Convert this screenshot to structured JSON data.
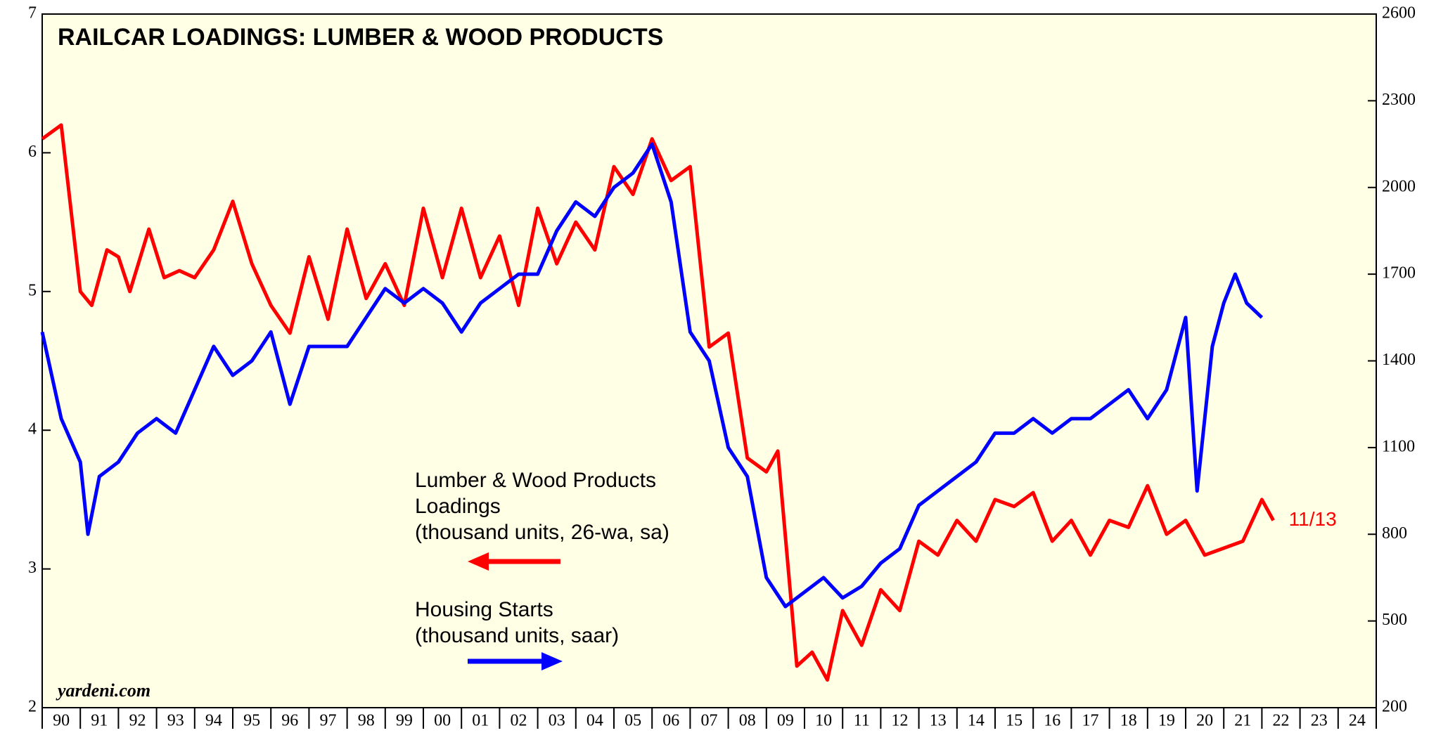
{
  "chart_data": {
    "type": "line",
    "title": "RAILCAR LOADINGS: LUMBER & WOOD PRODUCTS",
    "source": "yardeni.com",
    "end_label": "11/13",
    "xlim": [
      1990,
      2025
    ],
    "xticks": [
      {
        "value": 1990,
        "label": "90"
      },
      {
        "value": 1991,
        "label": "91"
      },
      {
        "value": 1992,
        "label": "92"
      },
      {
        "value": 1993,
        "label": "93"
      },
      {
        "value": 1994,
        "label": "94"
      },
      {
        "value": 1995,
        "label": "95"
      },
      {
        "value": 1996,
        "label": "96"
      },
      {
        "value": 1997,
        "label": "97"
      },
      {
        "value": 1998,
        "label": "98"
      },
      {
        "value": 1999,
        "label": "99"
      },
      {
        "value": 2000,
        "label": "00"
      },
      {
        "value": 2001,
        "label": "01"
      },
      {
        "value": 2002,
        "label": "02"
      },
      {
        "value": 2003,
        "label": "03"
      },
      {
        "value": 2004,
        "label": "04"
      },
      {
        "value": 2005,
        "label": "05"
      },
      {
        "value": 2006,
        "label": "06"
      },
      {
        "value": 2007,
        "label": "07"
      },
      {
        "value": 2008,
        "label": "08"
      },
      {
        "value": 2009,
        "label": "09"
      },
      {
        "value": 2010,
        "label": "10"
      },
      {
        "value": 2011,
        "label": "11"
      },
      {
        "value": 2012,
        "label": "12"
      },
      {
        "value": 2013,
        "label": "13"
      },
      {
        "value": 2014,
        "label": "14"
      },
      {
        "value": 2015,
        "label": "15"
      },
      {
        "value": 2016,
        "label": "16"
      },
      {
        "value": 2017,
        "label": "17"
      },
      {
        "value": 2018,
        "label": "18"
      },
      {
        "value": 2019,
        "label": "19"
      },
      {
        "value": 2020,
        "label": "20"
      },
      {
        "value": 2021,
        "label": "21"
      },
      {
        "value": 2022,
        "label": "22"
      },
      {
        "value": 2023,
        "label": "23"
      },
      {
        "value": 2024,
        "label": "24"
      }
    ],
    "ylim": [
      2,
      7
    ],
    "yticks": [
      2,
      3,
      4,
      5,
      6,
      7
    ],
    "y2lim": [
      200,
      2600
    ],
    "y2ticks": [
      200,
      500,
      800,
      1100,
      1400,
      1700,
      2000,
      2300,
      2600
    ],
    "series": [
      {
        "name": [
          "Lumber & Wood Products",
          "Loadings",
          "(thousand units, 26-wa, sa)"
        ],
        "color": "#ff0000",
        "x": [
          1990,
          1990.5,
          1991,
          1991.3,
          1991.7,
          1992,
          1992.3,
          1992.8,
          1993.2,
          1993.6,
          1994,
          1994.5,
          1995,
          1995.5,
          1996,
          1996.5,
          1997,
          1997.5,
          1998,
          1998.5,
          1999,
          1999.5,
          2000,
          2000.5,
          2001,
          2001.5,
          2002,
          2002.5,
          2003,
          2003.5,
          2004,
          2004.5,
          2005,
          2005.5,
          2006,
          2006.5,
          2007,
          2007.5,
          2008,
          2008.5,
          2009,
          2009.3,
          2009.8,
          2010.2,
          2010.6,
          2011,
          2011.5,
          2012,
          2012.5,
          2013,
          2013.5,
          2014,
          2014.5,
          2015,
          2015.5,
          2016,
          2016.5,
          2017,
          2017.5,
          2018,
          2018.5,
          2019,
          2019.5,
          2020,
          2020.5,
          2021,
          2021.5,
          2022,
          2022.3
        ],
        "values": [
          6.1,
          6.2,
          5.0,
          4.9,
          5.3,
          5.25,
          5.0,
          5.45,
          5.1,
          5.15,
          5.1,
          5.3,
          5.65,
          5.2,
          4.9,
          4.7,
          5.25,
          4.8,
          5.45,
          4.95,
          5.2,
          4.9,
          5.6,
          5.1,
          5.6,
          5.1,
          5.4,
          4.9,
          5.6,
          5.2,
          5.5,
          5.3,
          5.9,
          5.7,
          6.1,
          5.8,
          5.9,
          4.6,
          4.7,
          3.8,
          3.7,
          3.85,
          2.3,
          2.4,
          2.2,
          2.7,
          2.45,
          2.85,
          2.7,
          3.2,
          3.1,
          3.35,
          3.2,
          3.5,
          3.45,
          3.55,
          3.2,
          3.35,
          3.1,
          3.35,
          3.3,
          3.6,
          3.25,
          3.35,
          3.1,
          3.15,
          3.2,
          3.5,
          3.35
        ]
      },
      {
        "name": [
          "Housing Starts",
          "(thousand units, saar)"
        ],
        "color": "#0000ff",
        "axis": "y2",
        "x": [
          1990,
          1990.5,
          1991,
          1991.2,
          1991.5,
          1992,
          1992.5,
          1993,
          1993.5,
          1994,
          1994.5,
          1995,
          1995.5,
          1996,
          1996.5,
          1997,
          1997.5,
          1998,
          1998.5,
          1999,
          1999.5,
          2000,
          2000.5,
          2001,
          2001.5,
          2002,
          2002.5,
          2003,
          2003.5,
          2004,
          2004.5,
          2005,
          2005.5,
          2006,
          2006.5,
          2007,
          2007.5,
          2008,
          2008.5,
          2009,
          2009.5,
          2010,
          2010.5,
          2011,
          2011.5,
          2012,
          2012.5,
          2013,
          2013.5,
          2014,
          2014.5,
          2015,
          2015.5,
          2016,
          2016.5,
          2017,
          2017.5,
          2018,
          2018.5,
          2019,
          2019.5,
          2020,
          2020.3,
          2020.7,
          2021,
          2021.3,
          2021.6,
          2022
        ],
        "values": [
          1500,
          1200,
          1050,
          800,
          1000,
          1050,
          1150,
          1200,
          1150,
          1300,
          1450,
          1350,
          1400,
          1500,
          1250,
          1450,
          1450,
          1450,
          1550,
          1650,
          1600,
          1650,
          1600,
          1500,
          1600,
          1650,
          1700,
          1700,
          1850,
          1950,
          1900,
          2000,
          2050,
          2150,
          1950,
          1500,
          1400,
          1100,
          1000,
          650,
          550,
          600,
          650,
          580,
          620,
          700,
          750,
          900,
          950,
          1000,
          1050,
          1150,
          1150,
          1200,
          1150,
          1200,
          1200,
          1250,
          1300,
          1200,
          1300,
          1550,
          950,
          1450,
          1600,
          1700,
          1600,
          1550
        ]
      }
    ]
  }
}
